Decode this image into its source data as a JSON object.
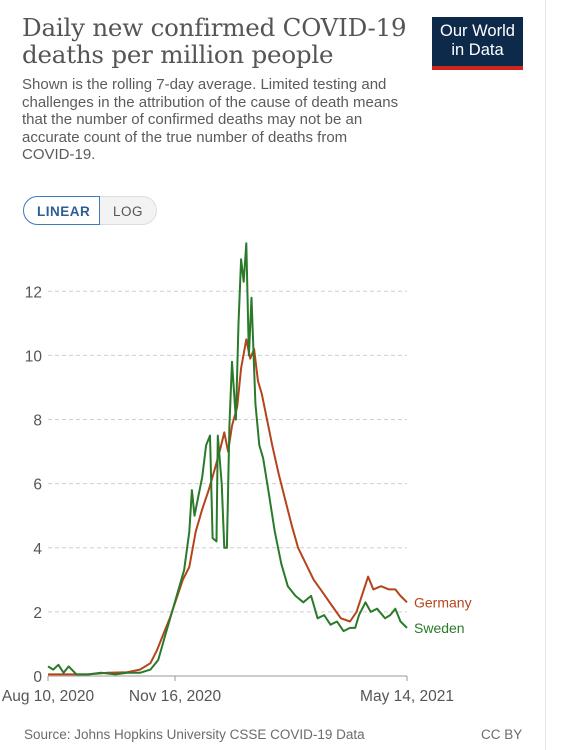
{
  "header": {
    "title": "Daily new confirmed COVID-19 deaths per million people",
    "subtitle": "Shown is the rolling 7-day average. Limited testing and challenges in the attribution of the cause of death means that the number of confirmed deaths may not be an accurate count of the true number of deaths from COVID-19.",
    "logo_line1": "Our World",
    "logo_line2": "in Data"
  },
  "controls": {
    "linear_label": "LINEAR",
    "log_label": "LOG",
    "selected": "LINEAR"
  },
  "colors": {
    "germany": "#b5441c",
    "sweden": "#2a7a2a",
    "grid": "#cfcfcf",
    "axis_text": "#555555"
  },
  "chart_data": {
    "type": "line",
    "title": "Daily new confirmed COVID-19 deaths per million people",
    "xlabel": "",
    "ylabel": "",
    "x_tick_labels": [
      "Aug 10, 2020",
      "Nov 16, 2020",
      "May 14, 2021"
    ],
    "x_range": [
      "2020-08-10",
      "2021-05-14"
    ],
    "yticks": [
      0,
      2,
      4,
      6,
      8,
      10,
      12
    ],
    "ylim": [
      0,
      13.6
    ],
    "grid": "horizontal dashed",
    "legend": "inline labels at line ends",
    "series": [
      {
        "name": "Germany",
        "points": [
          [
            "2020-08-10",
            0.05
          ],
          [
            "2020-08-25",
            0.05
          ],
          [
            "2020-09-10",
            0.05
          ],
          [
            "2020-09-25",
            0.1
          ],
          [
            "2020-10-10",
            0.12
          ],
          [
            "2020-10-20",
            0.2
          ],
          [
            "2020-10-28",
            0.4
          ],
          [
            "2020-11-02",
            0.8
          ],
          [
            "2020-11-07",
            1.3
          ],
          [
            "2020-11-12",
            1.8
          ],
          [
            "2020-11-17",
            2.4
          ],
          [
            "2020-11-22",
            3.0
          ],
          [
            "2020-11-27",
            3.4
          ],
          [
            "2020-12-02",
            4.5
          ],
          [
            "2020-12-07",
            5.2
          ],
          [
            "2020-12-12",
            5.8
          ],
          [
            "2020-12-17",
            6.5
          ],
          [
            "2020-12-21",
            7.1
          ],
          [
            "2020-12-24",
            7.6
          ],
          [
            "2020-12-27",
            7.0
          ],
          [
            "2020-12-30",
            7.8
          ],
          [
            "2021-01-03",
            8.4
          ],
          [
            "2021-01-06",
            9.6
          ],
          [
            "2021-01-10",
            10.5
          ],
          [
            "2021-01-13",
            9.9
          ],
          [
            "2021-01-16",
            10.2
          ],
          [
            "2021-01-19",
            9.2
          ],
          [
            "2021-01-22",
            8.8
          ],
          [
            "2021-01-26",
            8.0
          ],
          [
            "2021-01-30",
            7.2
          ],
          [
            "2021-02-04",
            6.3
          ],
          [
            "2021-02-09",
            5.5
          ],
          [
            "2021-02-14",
            4.7
          ],
          [
            "2021-02-19",
            4.0
          ],
          [
            "2021-02-25",
            3.5
          ],
          [
            "2021-03-03",
            3.0
          ],
          [
            "2021-03-10",
            2.6
          ],
          [
            "2021-03-17",
            2.2
          ],
          [
            "2021-03-24",
            1.8
          ],
          [
            "2021-03-31",
            1.7
          ],
          [
            "2021-04-05",
            2.0
          ],
          [
            "2021-04-10",
            2.6
          ],
          [
            "2021-04-14",
            3.1
          ],
          [
            "2021-04-18",
            2.7
          ],
          [
            "2021-04-24",
            2.8
          ],
          [
            "2021-04-30",
            2.7
          ],
          [
            "2021-05-05",
            2.7
          ],
          [
            "2021-05-09",
            2.5
          ],
          [
            "2021-05-14",
            2.3
          ]
        ]
      },
      {
        "name": "Sweden",
        "points": [
          [
            "2020-08-10",
            0.3
          ],
          [
            "2020-08-14",
            0.2
          ],
          [
            "2020-08-18",
            0.35
          ],
          [
            "2020-08-22",
            0.1
          ],
          [
            "2020-08-26",
            0.3
          ],
          [
            "2020-09-01",
            0.05
          ],
          [
            "2020-09-10",
            0.05
          ],
          [
            "2020-09-20",
            0.1
          ],
          [
            "2020-10-01",
            0.05
          ],
          [
            "2020-10-10",
            0.1
          ],
          [
            "2020-10-20",
            0.1
          ],
          [
            "2020-10-28",
            0.2
          ],
          [
            "2020-11-03",
            0.5
          ],
          [
            "2020-11-08",
            1.2
          ],
          [
            "2020-11-13",
            1.9
          ],
          [
            "2020-11-18",
            2.6
          ],
          [
            "2020-11-23",
            3.3
          ],
          [
            "2020-11-27",
            4.5
          ],
          [
            "2020-11-29",
            5.8
          ],
          [
            "2020-12-01",
            5.0
          ],
          [
            "2020-12-04",
            5.6
          ],
          [
            "2020-12-07",
            6.2
          ],
          [
            "2020-12-10",
            7.2
          ],
          [
            "2020-12-13",
            7.5
          ],
          [
            "2020-12-15",
            4.3
          ],
          [
            "2020-12-18",
            4.2
          ],
          [
            "2020-12-19",
            7.5
          ],
          [
            "2020-12-22",
            6.0
          ],
          [
            "2020-12-24",
            4.0
          ],
          [
            "2020-12-26",
            4.0
          ],
          [
            "2020-12-28",
            7.8
          ],
          [
            "2020-12-30",
            9.8
          ],
          [
            "2021-01-02",
            8.0
          ],
          [
            "2021-01-04",
            11.0
          ],
          [
            "2021-01-06",
            13.0
          ],
          [
            "2021-01-08",
            12.3
          ],
          [
            "2021-01-10",
            13.5
          ],
          [
            "2021-01-12",
            10.0
          ],
          [
            "2021-01-14",
            11.8
          ],
          [
            "2021-01-17",
            8.5
          ],
          [
            "2021-01-20",
            7.2
          ],
          [
            "2021-01-23",
            6.8
          ],
          [
            "2021-01-27",
            5.8
          ],
          [
            "2021-02-01",
            4.5
          ],
          [
            "2021-02-06",
            3.5
          ],
          [
            "2021-02-11",
            2.8
          ],
          [
            "2021-02-17",
            2.5
          ],
          [
            "2021-02-23",
            2.3
          ],
          [
            "2021-03-01",
            2.5
          ],
          [
            "2021-03-06",
            1.8
          ],
          [
            "2021-03-11",
            1.9
          ],
          [
            "2021-03-16",
            1.6
          ],
          [
            "2021-03-21",
            1.7
          ],
          [
            "2021-03-26",
            1.4
          ],
          [
            "2021-03-31",
            1.5
          ],
          [
            "2021-04-04",
            1.5
          ],
          [
            "2021-04-07",
            1.9
          ],
          [
            "2021-04-12",
            2.3
          ],
          [
            "2021-04-16",
            2.0
          ],
          [
            "2021-04-21",
            2.1
          ],
          [
            "2021-04-27",
            1.8
          ],
          [
            "2021-05-01",
            1.9
          ],
          [
            "2021-05-05",
            2.1
          ],
          [
            "2021-05-09",
            1.7
          ],
          [
            "2021-05-14",
            1.5
          ]
        ]
      }
    ]
  },
  "footer": {
    "source": "Source: Johns Hopkins University CSSE COVID-19 Data",
    "license": "CC BY"
  }
}
